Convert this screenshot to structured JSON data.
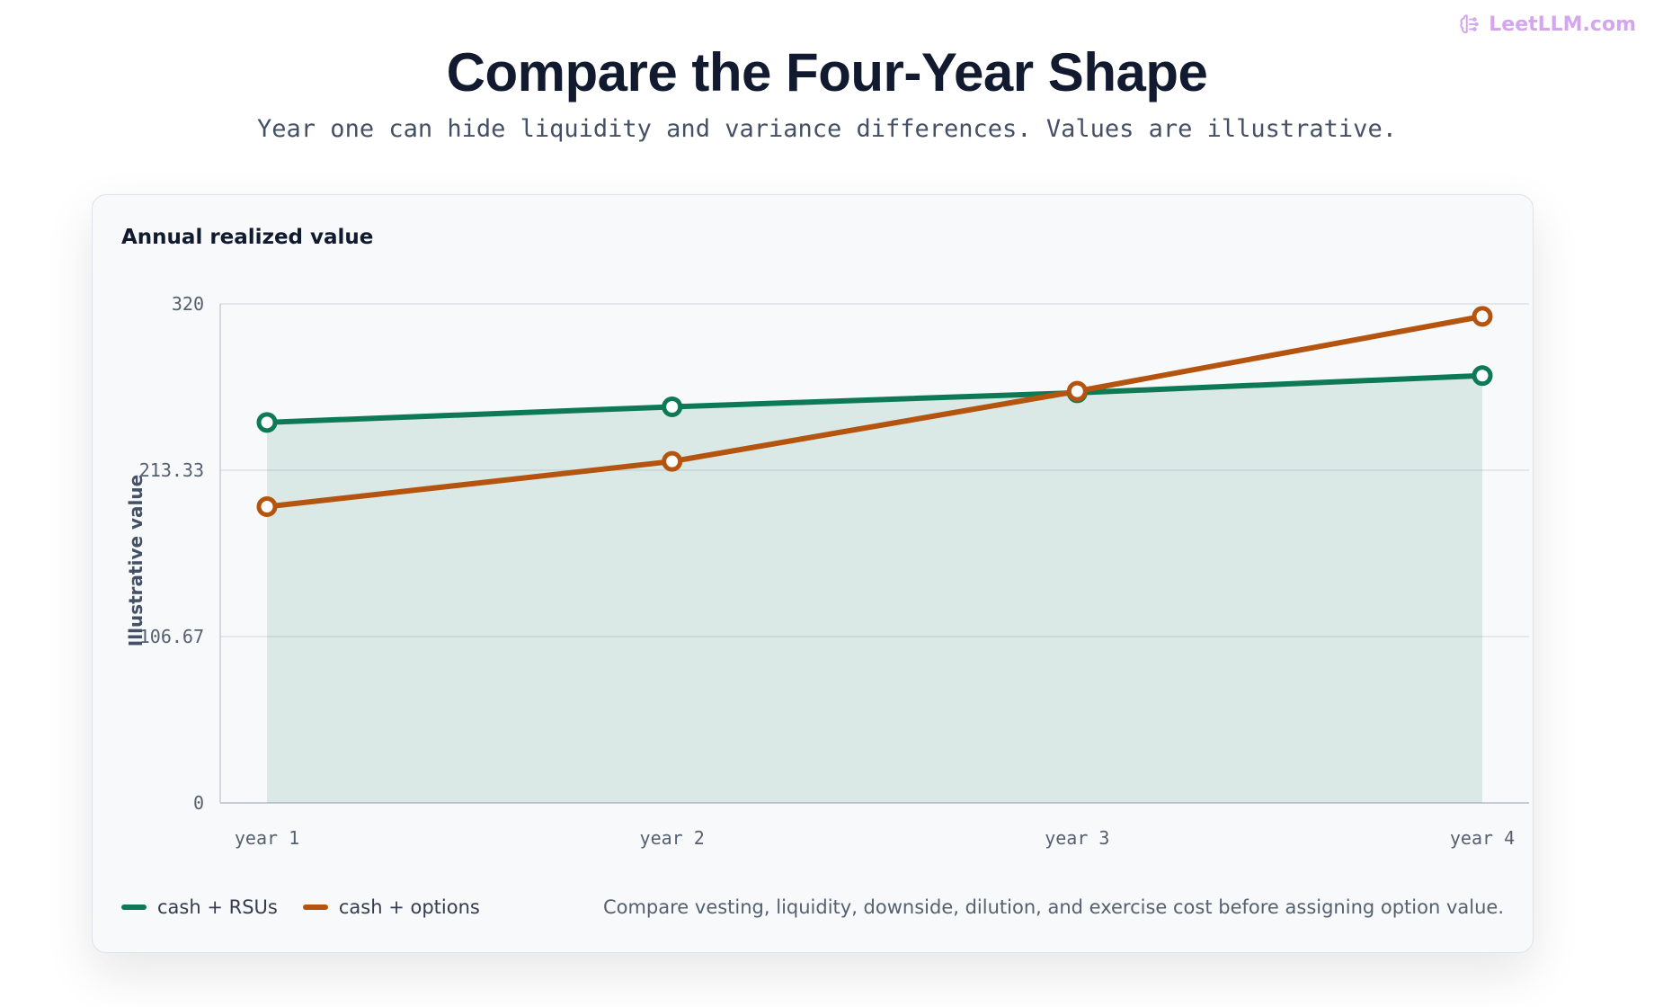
{
  "brand": {
    "text": "LeetLLM.com",
    "icon": "brain-icon",
    "color": "#d3a6ee"
  },
  "title": "Compare the Four-Year Shape",
  "subtitle": "Year one can hide liquidity and variance differences. Values are illustrative.",
  "card": {
    "title": "Annual realized value",
    "note": "Compare vesting, liquidity, downside, dilution, and exercise cost before assigning option value."
  },
  "chart_data": {
    "type": "line",
    "categories": [
      "year 1",
      "year 2",
      "year 3",
      "year 4"
    ],
    "ylabel": "Illustrative value",
    "ylim": [
      0,
      320
    ],
    "yticks": [
      "0",
      "106.67",
      "213.33",
      "320"
    ],
    "grid": true,
    "legend_position": "bottom-left",
    "series": [
      {
        "name": "cash + RSUs",
        "values": [
          244,
          254,
          263,
          274
        ],
        "color": "#0d7a55",
        "fill": true
      },
      {
        "name": "cash + options",
        "values": [
          190,
          219,
          264,
          312
        ],
        "color": "#b5540f",
        "fill": false
      }
    ]
  }
}
